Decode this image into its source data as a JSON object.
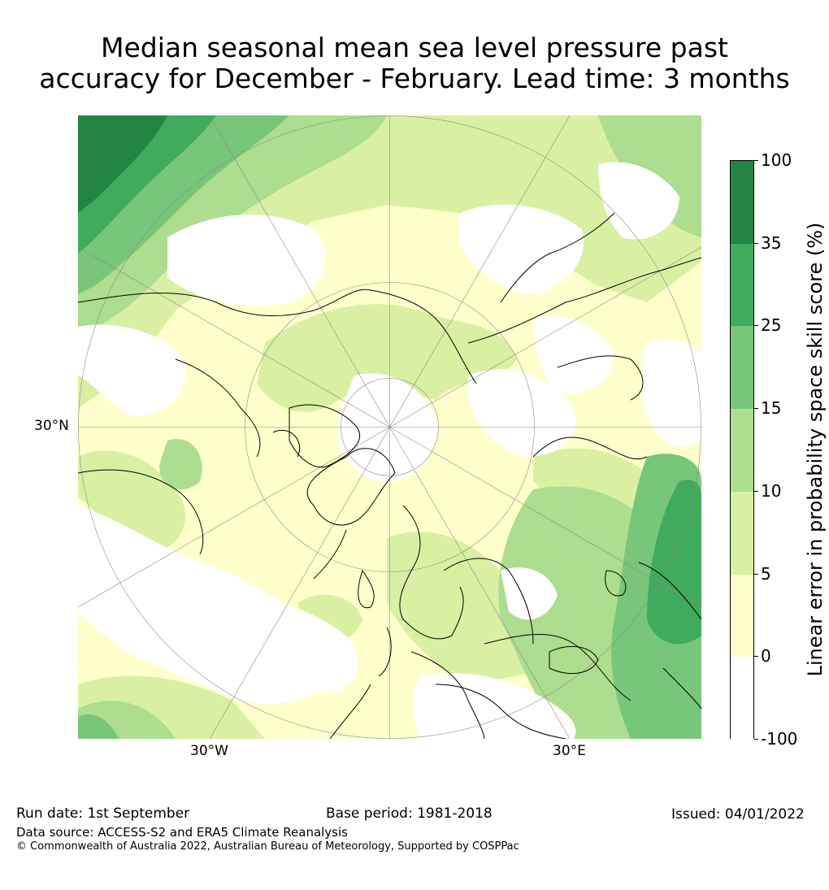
{
  "title": {
    "line1": "Median seasonal mean sea level pressure past",
    "line2": "accuracy for December - February. Lead time: 3 months"
  },
  "map": {
    "projection": "north-polar-stereographic",
    "lat_label": "30°N",
    "lon_labels": [
      "30°W",
      "30°E"
    ]
  },
  "colorbar": {
    "label": "Linear error in probability space skill score (%)",
    "ticks": [
      "100",
      "35",
      "25",
      "15",
      "10",
      "5",
      "0",
      "-100"
    ],
    "bins": [
      {
        "range": "35-100",
        "color": "#238443"
      },
      {
        "range": "25-35",
        "color": "#41ab5d"
      },
      {
        "range": "15-25",
        "color": "#78c679"
      },
      {
        "range": "10-15",
        "color": "#addd8e"
      },
      {
        "range": "5-10",
        "color": "#d9f0a3"
      },
      {
        "range": "0-5",
        "color": "#ffffcc"
      },
      {
        "range": "-100-0",
        "color": "#ffffff"
      }
    ]
  },
  "footer": {
    "run_date": "Run date: 1st September",
    "base_period": "Base period: 1981-2018",
    "issued": "Issued: 04/01/2022",
    "data_source": "Data source: ACCESS-S2 and ERA5 Climate Reanalysis",
    "copyright": "© Commonwealth of Australia 2022, Australian Bureau of Meteorology, Supported by COSPPac"
  }
}
